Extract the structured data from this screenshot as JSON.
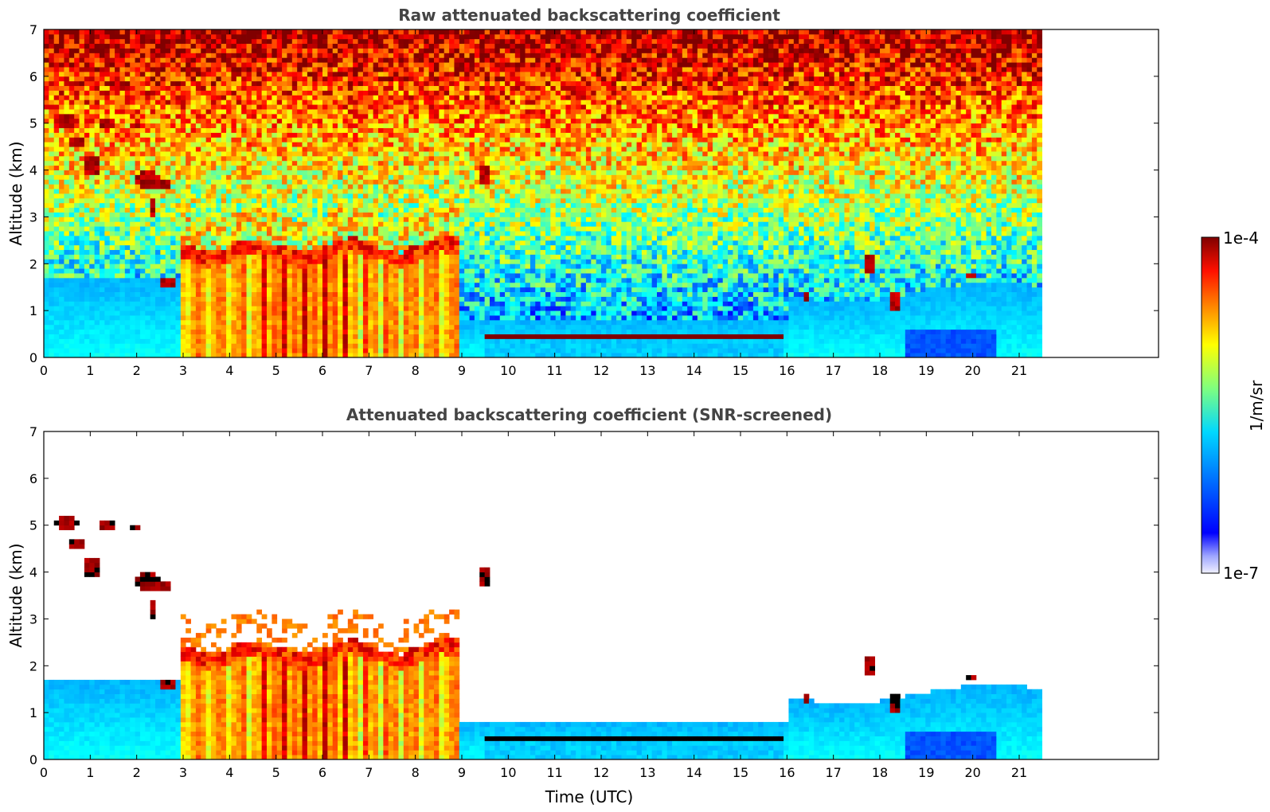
{
  "chart_data": [
    {
      "type": "heatmap",
      "title": "Raw attenuated backscattering coefficient",
      "xlabel": "",
      "ylabel": "Altitude (km)",
      "xlim": [
        0,
        24
      ],
      "ylim": [
        0,
        7
      ],
      "x_ticks": [
        "0",
        "1",
        "2",
        "3",
        "4",
        "5",
        "6",
        "7",
        "8",
        "9",
        "10",
        "11",
        "12",
        "13",
        "14",
        "15",
        "16",
        "17",
        "18",
        "19",
        "20",
        "21"
      ],
      "y_ticks": [
        "0",
        "1",
        "2",
        "3",
        "4",
        "5",
        "6",
        "7"
      ],
      "data_end_hour": 21.45,
      "screened": false
    },
    {
      "type": "heatmap",
      "title": "Attenuated backscattering coefficient (SNR-screened)",
      "xlabel": "Time (UTC)",
      "ylabel": "Altitude (km)",
      "xlim": [
        0,
        24
      ],
      "ylim": [
        0,
        7
      ],
      "x_ticks": [
        "0",
        "1",
        "2",
        "3",
        "4",
        "5",
        "6",
        "7",
        "8",
        "9",
        "10",
        "11",
        "12",
        "13",
        "14",
        "15",
        "16",
        "17",
        "18",
        "19",
        "20",
        "21"
      ],
      "y_ticks": [
        "0",
        "1",
        "2",
        "3",
        "4",
        "5",
        "6",
        "7"
      ],
      "data_end_hour": 21.45,
      "screened": true
    }
  ],
  "colorbar": {
    "label": "1/m/sr",
    "max_label": "1e-4",
    "min_label": "1e-7",
    "scale": "log",
    "colormap": "jet"
  },
  "features": {
    "low_cloud_top_km": 0.45,
    "low_cloud_span_hours": [
      9.6,
      15.9
    ],
    "thick_layer_span_hours": [
      3.0,
      8.9
    ],
    "thick_layer_top_km": 2.5,
    "cirrus_base_km": 3.5,
    "cirrus_top_km": 5.2
  }
}
